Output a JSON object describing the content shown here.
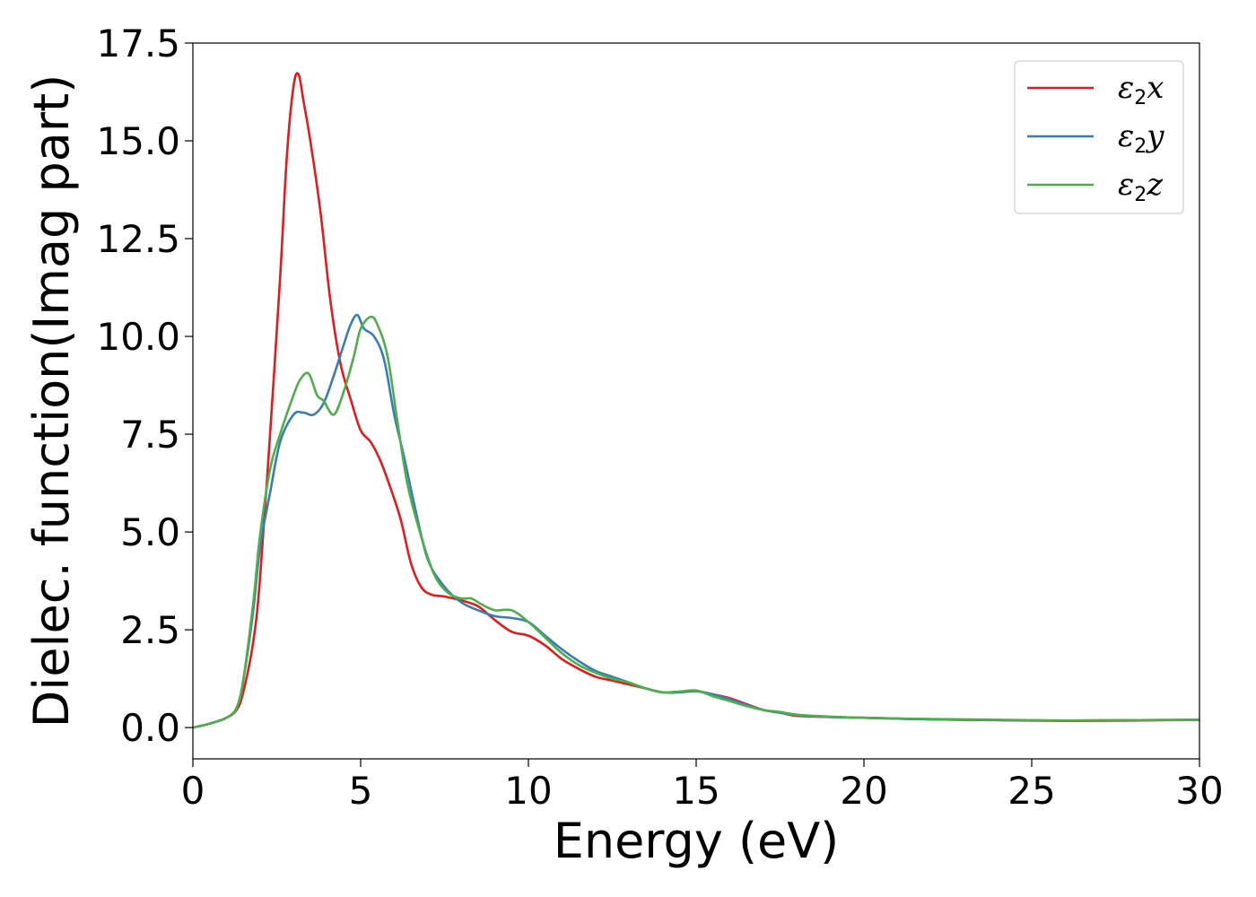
{
  "chart_data": {
    "type": "line",
    "title": "",
    "xlabel": "Energy (eV)",
    "ylabel": "Dielec. function(Imag part)",
    "xlim": [
      0,
      30
    ],
    "ylim": [
      -0.8,
      17.5
    ],
    "xticks": [
      0,
      5,
      10,
      15,
      20,
      25,
      30
    ],
    "xtick_labels": [
      "0",
      "5",
      "10",
      "15",
      "20",
      "25",
      "30"
    ],
    "yticks": [
      0.0,
      2.5,
      5.0,
      7.5,
      10.0,
      12.5,
      15.0,
      17.5
    ],
    "ytick_labels": [
      "0.0",
      "2.5",
      "5.0",
      "7.5",
      "10.0",
      "12.5",
      "15.0",
      "17.5"
    ],
    "grid": false,
    "legend_position": "top-right",
    "series": [
      {
        "name": "ε2x",
        "legend_base": "ε",
        "legend_sub": "2",
        "legend_var": "x",
        "color": "#e41a1c",
        "x": [
          0,
          0.5,
          1.0,
          1.3,
          1.5,
          1.8,
          2.0,
          2.3,
          2.6,
          2.8,
          3.0,
          3.15,
          3.3,
          3.5,
          3.8,
          4.1,
          4.4,
          4.7,
          5.0,
          5.3,
          5.6,
          5.9,
          6.2,
          6.5,
          6.8,
          7.1,
          7.5,
          8.0,
          8.5,
          9.0,
          9.5,
          10.0,
          10.5,
          11.0,
          11.5,
          12.0,
          12.5,
          13.0,
          13.5,
          14.0,
          14.5,
          15.0,
          15.5,
          16.0,
          16.5,
          17.0,
          17.5,
          18.0,
          19.0,
          20.0,
          22.0,
          24.0,
          26.0,
          28.0,
          30.0
        ],
        "y": [
          0.0,
          0.1,
          0.25,
          0.45,
          0.9,
          2.2,
          3.8,
          7.5,
          11.5,
          14.6,
          16.4,
          16.7,
          16.0,
          15.0,
          13.2,
          10.9,
          9.3,
          8.4,
          7.6,
          7.3,
          6.8,
          6.1,
          5.3,
          4.2,
          3.6,
          3.4,
          3.35,
          3.25,
          3.1,
          2.75,
          2.45,
          2.35,
          2.1,
          1.75,
          1.5,
          1.3,
          1.2,
          1.1,
          1.0,
          0.9,
          0.92,
          0.93,
          0.85,
          0.75,
          0.6,
          0.45,
          0.38,
          0.3,
          0.27,
          0.25,
          0.21,
          0.19,
          0.17,
          0.18,
          0.2
        ]
      },
      {
        "name": "ε2y",
        "legend_base": "ε",
        "legend_sub": "2",
        "legend_var": "y",
        "color": "#377eb8",
        "x": [
          0,
          0.5,
          1.0,
          1.3,
          1.5,
          1.8,
          2.0,
          2.3,
          2.6,
          3.0,
          3.3,
          3.6,
          3.9,
          4.2,
          4.5,
          4.7,
          4.9,
          5.1,
          5.4,
          5.7,
          6.0,
          6.3,
          6.6,
          7.0,
          7.5,
          8.0,
          8.5,
          9.0,
          9.5,
          10.0,
          10.5,
          11.0,
          11.5,
          12.0,
          12.5,
          13.0,
          13.5,
          14.0,
          14.5,
          15.0,
          15.5,
          16.0,
          16.5,
          17.0,
          17.5,
          18.0,
          19.0,
          20.0,
          22.0,
          24.0,
          26.0,
          28.0,
          30.0
        ],
        "y": [
          0.0,
          0.1,
          0.25,
          0.5,
          1.2,
          3.0,
          4.6,
          6.0,
          7.3,
          8.0,
          8.05,
          8.0,
          8.3,
          9.0,
          9.8,
          10.3,
          10.55,
          10.2,
          10.0,
          9.4,
          8.0,
          6.9,
          5.7,
          4.3,
          3.6,
          3.2,
          3.0,
          2.85,
          2.8,
          2.7,
          2.35,
          2.0,
          1.7,
          1.45,
          1.3,
          1.15,
          1.0,
          0.9,
          0.9,
          0.93,
          0.85,
          0.72,
          0.58,
          0.45,
          0.38,
          0.32,
          0.27,
          0.25,
          0.21,
          0.19,
          0.18,
          0.19,
          0.2
        ]
      },
      {
        "name": "ε2z",
        "legend_base": "ε",
        "legend_sub": "2",
        "legend_var": "z",
        "color": "#4daf4a",
        "x": [
          0,
          0.5,
          1.0,
          1.3,
          1.5,
          1.8,
          2.0,
          2.3,
          2.6,
          3.0,
          3.2,
          3.45,
          3.7,
          3.9,
          4.2,
          4.5,
          4.8,
          5.0,
          5.3,
          5.5,
          5.8,
          6.1,
          6.4,
          6.8,
          7.2,
          7.6,
          8.0,
          8.3,
          8.6,
          9.0,
          9.5,
          10.0,
          10.5,
          11.0,
          11.5,
          12.0,
          12.5,
          13.0,
          13.5,
          14.0,
          14.5,
          15.0,
          15.5,
          16.0,
          16.5,
          17.0,
          17.5,
          18.0,
          19.0,
          20.0,
          22.0,
          24.0,
          26.0,
          28.0,
          30.0
        ],
        "y": [
          0.0,
          0.1,
          0.25,
          0.5,
          1.2,
          3.2,
          4.9,
          6.6,
          7.5,
          8.5,
          8.9,
          9.05,
          8.5,
          8.35,
          8.0,
          8.6,
          9.5,
          10.2,
          10.5,
          10.3,
          9.5,
          7.8,
          6.2,
          4.9,
          3.9,
          3.45,
          3.3,
          3.3,
          3.15,
          3.0,
          3.0,
          2.7,
          2.3,
          1.9,
          1.6,
          1.4,
          1.25,
          1.15,
          1.0,
          0.9,
          0.92,
          0.95,
          0.8,
          0.68,
          0.55,
          0.45,
          0.4,
          0.33,
          0.28,
          0.25,
          0.22,
          0.2,
          0.18,
          0.19,
          0.2
        ]
      }
    ]
  }
}
